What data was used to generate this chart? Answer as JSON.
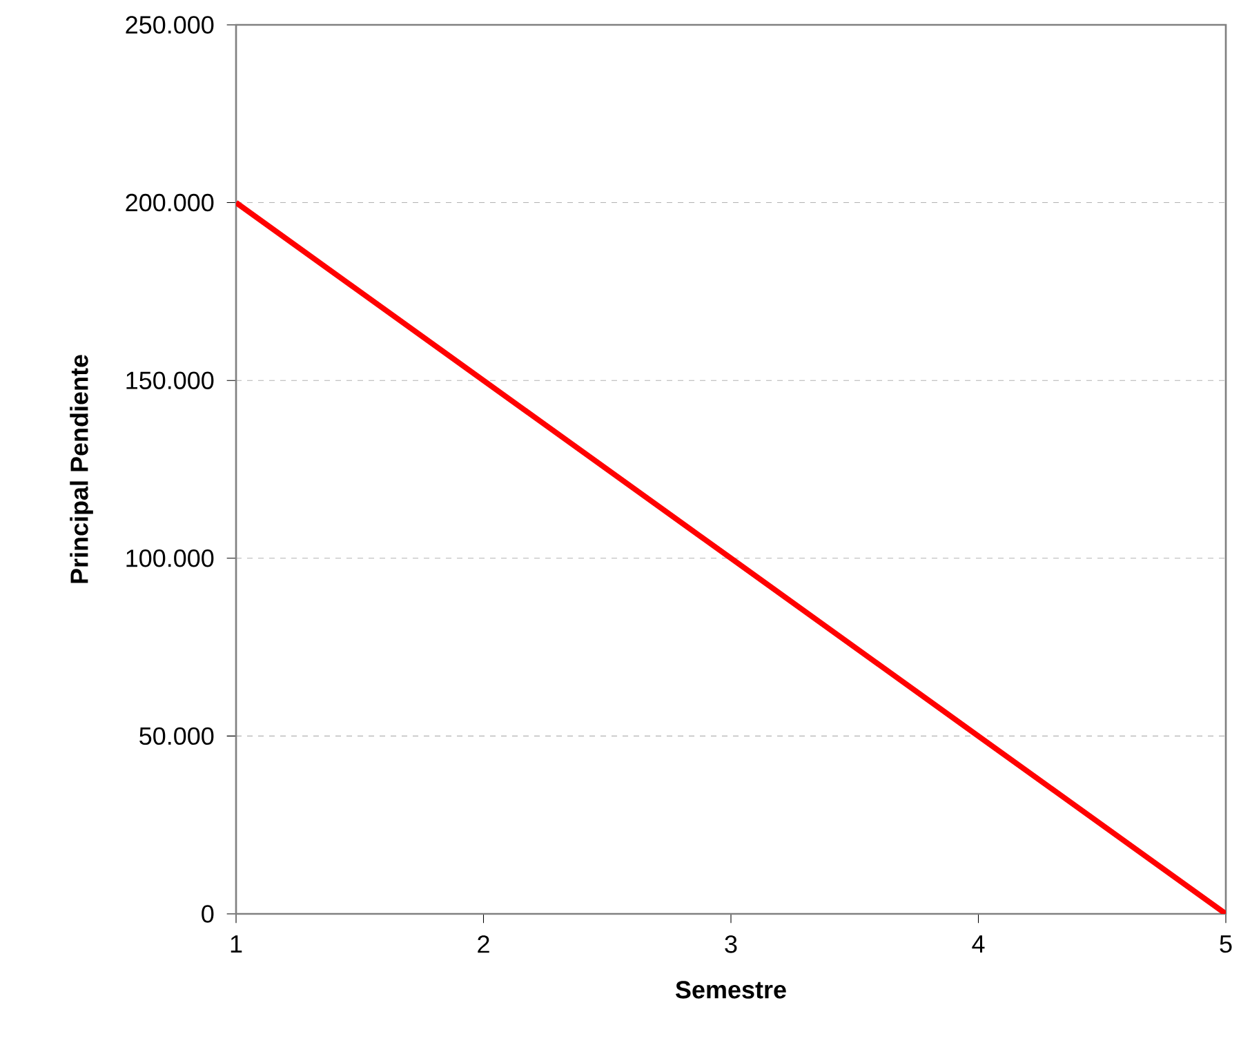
{
  "chart_data": {
    "type": "line",
    "xlabel": "Semestre",
    "ylabel": "Principal Pendiente",
    "x": [
      1,
      2,
      3,
      4,
      5
    ],
    "series": [
      {
        "color": "#ff0000",
        "values": [
          200000,
          150000,
          100000,
          50000,
          0
        ]
      }
    ],
    "xlim": [
      1,
      5
    ],
    "xticks": [
      1,
      2,
      3,
      4,
      5
    ],
    "ylim": [
      0,
      250000
    ],
    "yticks": [
      0,
      {
        "value": 50000,
        "label": "50.000"
      },
      {
        "value": 100000,
        "label": "100.000"
      },
      {
        "value": 150000,
        "label": "150.000"
      },
      {
        "value": 200000,
        "label": "200.000"
      },
      {
        "value": 250000,
        "label": "250.000"
      }
    ],
    "grid": "y"
  }
}
